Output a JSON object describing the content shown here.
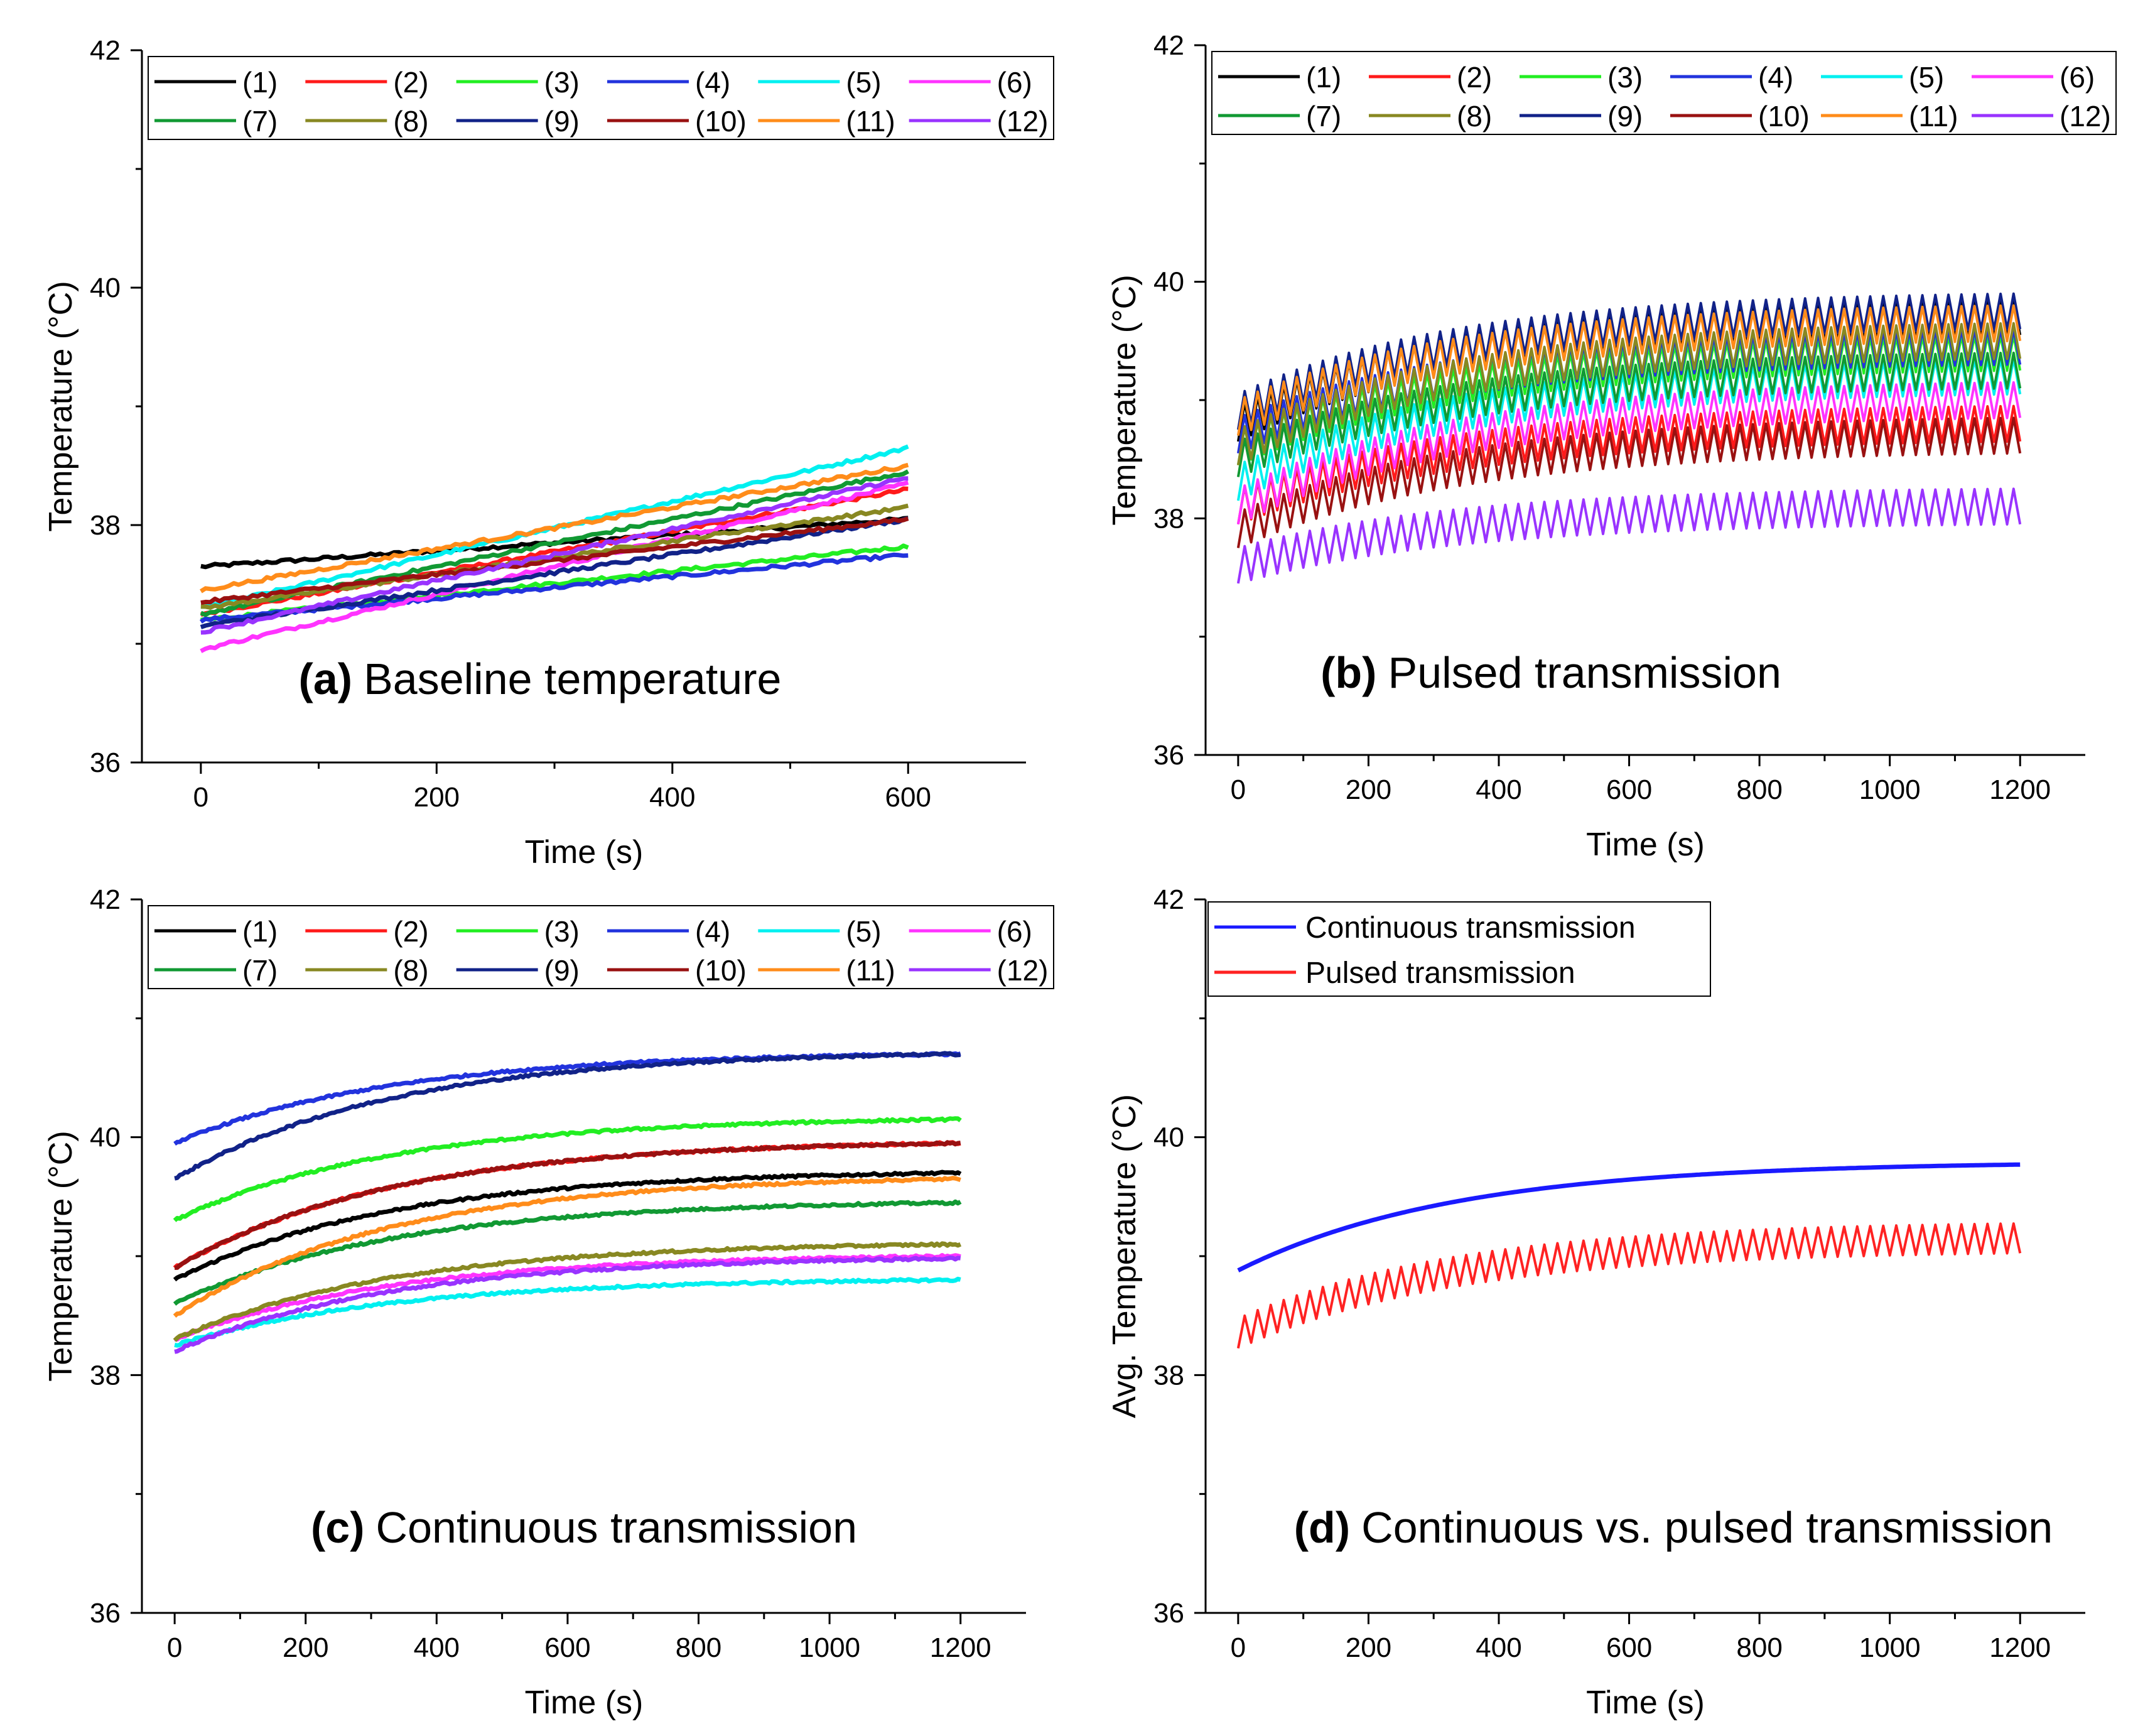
{
  "figure": {
    "series_colors": {
      "(1)": "#000000",
      "(2)": "#ff1a1a",
      "(3)": "#22ee22",
      "(4)": "#2233dd",
      "(5)": "#00f0f0",
      "(6)": "#ff33ff",
      "(7)": "#119933",
      "(8)": "#888822",
      "(9)": "#112288",
      "(10)": "#991111",
      "(11)": "#ff8c1a",
      "(12)": "#9933ff"
    }
  },
  "chart_data": [
    {
      "panel": "a",
      "type": "line",
      "title_bold": "(a)",
      "title_text": "Baseline temperature",
      "xlabel": "Time (s)",
      "ylabel": "Temperature  (°C)",
      "xlim": [
        -50,
        700
      ],
      "ylim": [
        36,
        42
      ],
      "xticks": [
        0,
        200,
        400,
        600
      ],
      "yticks": [
        36,
        38,
        40,
        42
      ],
      "legend": [
        "(1)",
        "(2)",
        "(3)",
        "(4)",
        "(5)",
        "(6)",
        "(7)",
        "(8)",
        "(9)",
        "(10)",
        "(11)",
        "(12)"
      ],
      "legend_placement": "top",
      "series": [
        {
          "name": "(1)",
          "x": [
            0,
            600
          ],
          "start": 37.65,
          "end": 38.05,
          "shape": "linear",
          "noise": 0.03
        },
        {
          "name": "(2)",
          "x": [
            0,
            600
          ],
          "start": 37.25,
          "end": 38.3,
          "shape": "linear",
          "noise": 0.03
        },
        {
          "name": "(3)",
          "x": [
            0,
            600
          ],
          "start": 37.2,
          "end": 37.82,
          "shape": "linear",
          "noise": 0.03
        },
        {
          "name": "(4)",
          "x": [
            0,
            600
          ],
          "start": 37.2,
          "end": 37.75,
          "shape": "linear",
          "noise": 0.03
        },
        {
          "name": "(5)",
          "x": [
            0,
            600
          ],
          "start": 37.3,
          "end": 38.65,
          "shape": "linear",
          "noise": 0.03
        },
        {
          "name": "(6)",
          "x": [
            0,
            600
          ],
          "start": 36.95,
          "end": 38.35,
          "shape": "linear",
          "noise": 0.03
        },
        {
          "name": "(7)",
          "x": [
            0,
            600
          ],
          "start": 37.25,
          "end": 38.45,
          "shape": "linear",
          "noise": 0.03
        },
        {
          "name": "(8)",
          "x": [
            0,
            600
          ],
          "start": 37.3,
          "end": 38.15,
          "shape": "linear",
          "noise": 0.03
        },
        {
          "name": "(9)",
          "x": [
            0,
            600
          ],
          "start": 37.15,
          "end": 38.05,
          "shape": "linear",
          "noise": 0.03
        },
        {
          "name": "(10)",
          "x": [
            0,
            600
          ],
          "start": 37.35,
          "end": 38.05,
          "shape": "linear",
          "noise": 0.03
        },
        {
          "name": "(11)",
          "x": [
            0,
            600
          ],
          "start": 37.45,
          "end": 38.5,
          "shape": "linear",
          "noise": 0.03
        },
        {
          "name": "(12)",
          "x": [
            0,
            600
          ],
          "start": 37.1,
          "end": 38.4,
          "shape": "linear",
          "noise": 0.03
        }
      ]
    },
    {
      "panel": "b",
      "type": "line",
      "title_bold": "(b)",
      "title_text": "Pulsed transmission",
      "xlabel": "Time (s)",
      "ylabel": "Temperature  (°C)",
      "xlim": [
        -50,
        1300
      ],
      "ylim": [
        36,
        42
      ],
      "xticks": [
        0,
        200,
        400,
        600,
        800,
        1000,
        1200
      ],
      "yticks": [
        36,
        38,
        40,
        42
      ],
      "legend": [
        "(1)",
        "(2)",
        "(3)",
        "(4)",
        "(5)",
        "(6)",
        "(7)",
        "(8)",
        "(9)",
        "(10)",
        "(11)",
        "(12)"
      ],
      "legend_placement": "top",
      "pulse_period_s": 20,
      "series": [
        {
          "name": "(1)",
          "x": [
            0,
            1200
          ],
          "start": 38.8,
          "end": 39.7,
          "shape": "saturating",
          "amplitude": 0.3
        },
        {
          "name": "(2)",
          "x": [
            0,
            1200
          ],
          "start": 38.1,
          "end": 38.8,
          "shape": "saturating",
          "amplitude": 0.3
        },
        {
          "name": "(3)",
          "x": [
            0,
            1200
          ],
          "start": 38.6,
          "end": 39.4,
          "shape": "saturating",
          "amplitude": 0.3
        },
        {
          "name": "(4)",
          "x": [
            0,
            1200
          ],
          "start": 38.7,
          "end": 39.45,
          "shape": "saturating",
          "amplitude": 0.3
        },
        {
          "name": "(5)",
          "x": [
            0,
            1200
          ],
          "start": 38.3,
          "end": 39.2,
          "shape": "saturating",
          "amplitude": 0.3
        },
        {
          "name": "(6)",
          "x": [
            0,
            1200
          ],
          "start": 38.1,
          "end": 39.0,
          "shape": "saturating",
          "amplitude": 0.3
        },
        {
          "name": "(7)",
          "x": [
            0,
            1200
          ],
          "start": 38.5,
          "end": 39.25,
          "shape": "saturating",
          "amplitude": 0.3
        },
        {
          "name": "(8)",
          "x": [
            0,
            1200
          ],
          "start": 38.6,
          "end": 39.5,
          "shape": "saturating",
          "amplitude": 0.3
        },
        {
          "name": "(9)",
          "x": [
            0,
            1200
          ],
          "start": 38.9,
          "end": 39.75,
          "shape": "saturating",
          "amplitude": 0.3
        },
        {
          "name": "(10)",
          "x": [
            0,
            1200
          ],
          "start": 37.9,
          "end": 38.7,
          "shape": "saturating",
          "amplitude": 0.3
        },
        {
          "name": "(11)",
          "x": [
            0,
            1200
          ],
          "start": 38.85,
          "end": 39.65,
          "shape": "saturating",
          "amplitude": 0.3
        },
        {
          "name": "(12)",
          "x": [
            0,
            1200
          ],
          "start": 37.6,
          "end": 38.1,
          "shape": "saturating",
          "amplitude": 0.3
        }
      ]
    },
    {
      "panel": "c",
      "type": "line",
      "title_bold": "(c)",
      "title_text": "Continuous  transmission",
      "xlabel": "Time (s)",
      "ylabel": "Temperature  (°C)",
      "xlim": [
        -50,
        1300
      ],
      "ylim": [
        36,
        42
      ],
      "xticks": [
        0,
        200,
        400,
        600,
        800,
        1000,
        1200
      ],
      "yticks": [
        36,
        38,
        40,
        42
      ],
      "legend": [
        "(1)",
        "(2)",
        "(3)",
        "(4)",
        "(5)",
        "(6)",
        "(7)",
        "(8)",
        "(9)",
        "(10)",
        "(11)",
        "(12)"
      ],
      "legend_placement": "top",
      "series": [
        {
          "name": "(1)",
          "x": [
            0,
            1200
          ],
          "start": 38.8,
          "end": 39.7,
          "shape": "saturating",
          "noise": 0.02
        },
        {
          "name": "(2)",
          "x": [
            0,
            1200
          ],
          "start": 38.9,
          "end": 39.95,
          "shape": "saturating",
          "noise": 0.02
        },
        {
          "name": "(3)",
          "x": [
            0,
            1200
          ],
          "start": 39.3,
          "end": 40.15,
          "shape": "saturating",
          "noise": 0.02
        },
        {
          "name": "(4)",
          "x": [
            0,
            1200
          ],
          "start": 39.95,
          "end": 40.7,
          "shape": "saturating",
          "noise": 0.02
        },
        {
          "name": "(5)",
          "x": [
            0,
            1200
          ],
          "start": 38.25,
          "end": 38.8,
          "shape": "saturating",
          "noise": 0.02
        },
        {
          "name": "(6)",
          "x": [
            0,
            1200
          ],
          "start": 38.3,
          "end": 39.0,
          "shape": "saturating",
          "noise": 0.02
        },
        {
          "name": "(7)",
          "x": [
            0,
            1200
          ],
          "start": 38.6,
          "end": 39.45,
          "shape": "saturating",
          "noise": 0.02
        },
        {
          "name": "(8)",
          "x": [
            0,
            1200
          ],
          "start": 38.3,
          "end": 39.1,
          "shape": "saturating",
          "noise": 0.02
        },
        {
          "name": "(9)",
          "x": [
            0,
            1200
          ],
          "start": 39.65,
          "end": 40.7,
          "shape": "saturating",
          "noise": 0.02
        },
        {
          "name": "(10)",
          "x": [
            0,
            1200
          ],
          "start": 38.9,
          "end": 39.95,
          "shape": "saturating",
          "noise": 0.02
        },
        {
          "name": "(11)",
          "x": [
            0,
            1200
          ],
          "start": 38.5,
          "end": 39.65,
          "shape": "saturating",
          "noise": 0.02
        },
        {
          "name": "(12)",
          "x": [
            0,
            1200
          ],
          "start": 38.2,
          "end": 38.98,
          "shape": "saturating",
          "noise": 0.02
        }
      ]
    },
    {
      "panel": "d",
      "type": "line",
      "title_bold": "(d)",
      "title_text": "Continuous  vs. pulsed  transmission",
      "xlabel": "Time (s)",
      "ylabel": "Avg. Temperature  (°C)",
      "xlim": [
        -50,
        1300
      ],
      "ylim": [
        36,
        42
      ],
      "xticks": [
        0,
        200,
        400,
        600,
        800,
        1000,
        1200
      ],
      "yticks": [
        36,
        38,
        40,
        42
      ],
      "legend": [
        "Continuous transmission",
        "Pulsed transmission"
      ],
      "legend_placement": "top-left",
      "pulse_period_s": 20,
      "series": [
        {
          "name": "Continuous transmission",
          "color": "#1a1aff",
          "x": [
            0,
            1200
          ],
          "start": 38.88,
          "end": 39.77,
          "shape": "saturating"
        },
        {
          "name": "Pulsed transmission",
          "color": "#ff2222",
          "x": [
            0,
            1200
          ],
          "start": 38.35,
          "end": 39.15,
          "shape": "saturating",
          "amplitude": 0.25
        }
      ]
    }
  ]
}
